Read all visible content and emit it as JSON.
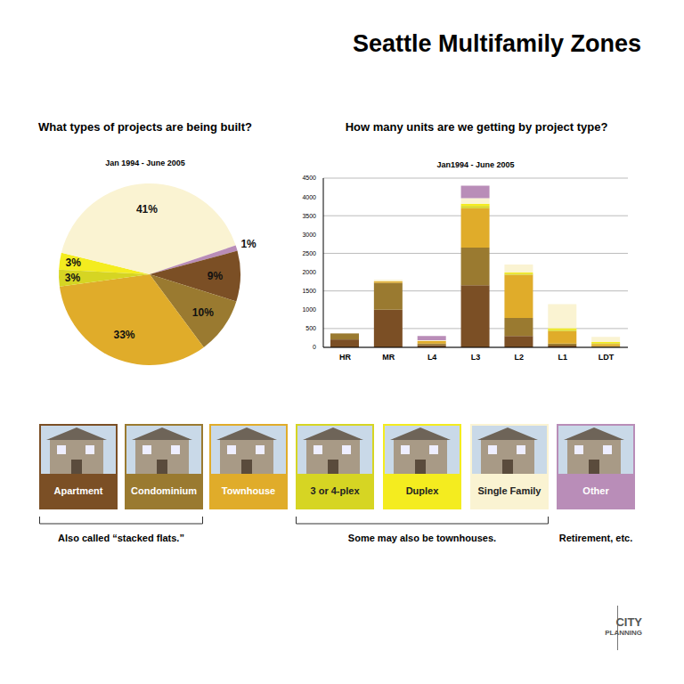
{
  "title": "Seattle Multifamily Zones",
  "chart_data": [
    {
      "type": "pie",
      "title": "What types of projects are being built?",
      "subtitle": "Jan 1994 - June 2005",
      "categories": [
        "Duplex",
        "Single Family",
        "Other",
        "Apartment",
        "Condominium",
        "Townhouse",
        "3 or 4-plex"
      ],
      "values": [
        3,
        41,
        1,
        9,
        10,
        33,
        3
      ],
      "value_labels": [
        "3%",
        "41%",
        "1%",
        "9%",
        "10%",
        "33%",
        "3%"
      ],
      "colors": [
        "#f4ec1f",
        "#faf3d2",
        "#b98db8",
        "#7b4f25",
        "#9a7a30",
        "#e0ac2a",
        "#d6d523"
      ],
      "data_labels": true
    },
    {
      "type": "bar",
      "title": "How many units are we getting by project type?",
      "subtitle": "Jan1994 - June 2005",
      "categories": [
        "HR",
        "MR",
        "L4",
        "L3",
        "L2",
        "L1",
        "LDT"
      ],
      "stacked": true,
      "grid": true,
      "ylim": [
        0,
        4500
      ],
      "yticks": [
        0,
        500,
        1000,
        1500,
        2000,
        2500,
        3000,
        3500,
        4000,
        4500
      ],
      "series": [
        {
          "name": "Apartment",
          "color": "#7b4f25",
          "values": [
            210,
            1000,
            60,
            1650,
            300,
            50,
            0
          ]
        },
        {
          "name": "Condominium",
          "color": "#9a7a30",
          "values": [
            160,
            720,
            40,
            1000,
            480,
            50,
            30
          ]
        },
        {
          "name": "Townhouse",
          "color": "#e0ac2a",
          "values": [
            0,
            30,
            70,
            1050,
            1150,
            330,
            60
          ]
        },
        {
          "name": "3 or 4-plex",
          "color": "#d6d523",
          "values": [
            0,
            0,
            0,
            60,
            30,
            40,
            20
          ]
        },
        {
          "name": "Duplex",
          "color": "#f4ec1f",
          "values": [
            0,
            0,
            0,
            60,
            30,
            40,
            30
          ]
        },
        {
          "name": "Single Family",
          "color": "#faf3d2",
          "values": [
            0,
            50,
            20,
            150,
            210,
            640,
            140
          ]
        },
        {
          "name": "Other",
          "color": "#b98db8",
          "values": [
            0,
            0,
            110,
            330,
            0,
            0,
            0
          ]
        }
      ]
    }
  ],
  "annotations": [
    "Also called “stacked flats.”",
    "Some may also be townhouses.",
    "Retirement, etc."
  ],
  "logo": [
    "CITY",
    "PLANNING"
  ]
}
